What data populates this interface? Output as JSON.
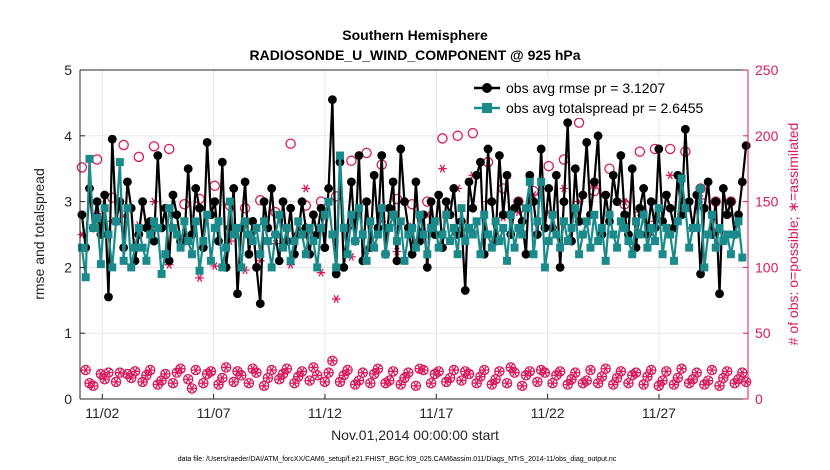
{
  "chart_data": {
    "type": "line",
    "title": "Southern Hemisphere",
    "subtitle": "RADIOSONDE_U_WIND_COMPONENT @ 925 hPa",
    "xlabel": "Nov.01,2014 00:00:00 start",
    "ylabel": "rmse and totalspread",
    "ylabel_right": "# of obs: o=possible; ∗=assimilated",
    "footnote": "data file: /Users/raeder/DAI/ATM_forcXX/CAM6_setup/f.e21.FHIST_BGC.f09_025.CAM6assim.011/Diags_NTrS_2014-11/obs_diag_output.nc",
    "legend_position": "top-right",
    "legend": [
      "obs avg rmse pr = 3.1207",
      "obs avg totalspread pr = 2.6455"
    ],
    "xlim": [
      0.5,
      30.5
    ],
    "ylim": [
      0,
      5
    ],
    "ylim_right": [
      0,
      250
    ],
    "x_ticks": [
      1.5,
      6.5,
      11.5,
      16.5,
      21.5,
      26.5
    ],
    "x_tick_labels": [
      "11/02",
      "11/07",
      "11/12",
      "11/17",
      "11/22",
      "11/27"
    ],
    "y_ticks": [
      0,
      1,
      2,
      3,
      4,
      5
    ],
    "y_tick_labels": [
      "0",
      "1",
      "2",
      "3",
      "4",
      "5"
    ],
    "y_ticks_right": [
      0,
      50,
      100,
      150,
      200,
      250
    ],
    "y_tick_labels_right": [
      "0",
      "50",
      "100",
      "150",
      "200",
      "250"
    ],
    "colors": {
      "rmse": "#000000",
      "spread": "#1a8a8a",
      "obs": "#d81b5e",
      "axis": "#262626",
      "grid": "#dcdcdc"
    },
    "series": [
      {
        "name": "obs avg rmse pr",
        "axis": "left",
        "values": [
          2.8,
          2.3,
          3.2,
          2.6,
          3.0,
          2.5,
          3.1,
          1.55,
          3.95,
          2.7,
          3.0,
          2.3,
          3.3,
          2.9,
          2.1,
          2.5,
          3.0,
          2.6,
          2.7,
          2.4,
          3.7,
          2.6,
          2.9,
          2.1,
          3.1,
          2.8,
          2.4,
          2.4,
          3.5,
          2.5,
          3.2,
          2.9,
          2.3,
          3.9,
          2.8,
          3.0,
          2.4,
          3.6,
          2.0,
          2.6,
          3.2,
          1.6,
          2.6,
          3.3,
          2.2,
          2.7,
          2.0,
          1.45,
          3.0,
          2.6,
          3.2,
          2.5,
          2.1,
          3.0,
          2.4,
          2.9,
          2.2,
          2.5,
          3.0,
          2.6,
          2.2,
          2.8,
          2.5,
          2.9,
          2.3,
          3.2,
          4.55,
          1.9,
          3.6,
          2.0,
          2.6,
          3.3,
          2.4,
          3.7,
          2.1,
          3.0,
          2.3,
          3.4,
          2.6,
          3.7,
          2.2,
          2.9,
          3.3,
          2.1,
          3.8,
          3.0,
          2.6,
          2.2,
          3.3,
          2.4,
          2.8,
          2.0,
          3.0,
          2.5,
          3.1,
          2.3,
          3.0,
          2.8,
          3.2,
          2.5,
          2.7,
          1.65,
          3.3,
          2.9,
          3.4,
          3.6,
          2.2,
          3.8,
          3.0,
          2.4,
          3.7,
          2.8,
          3.4,
          2.5,
          2.9,
          3.0,
          2.7,
          2.2,
          3.4,
          3.0,
          2.5,
          3.8,
          2.6,
          3.2,
          2.6,
          3.4,
          2.0,
          3.0,
          4.2,
          2.4,
          3.5,
          2.7,
          3.1,
          3.9,
          2.8,
          3.3,
          4.0,
          2.5,
          3.1,
          2.7,
          3.4,
          3.0,
          3.7,
          2.8,
          2.5,
          3.5,
          2.3,
          2.9,
          3.2,
          2.5,
          3.0,
          2.6,
          3.8,
          2.7,
          3.1,
          2.9,
          2.6,
          3.4,
          2.8,
          4.1,
          3.0,
          2.6,
          3.1,
          1.9,
          2.9,
          3.3,
          2.5,
          3.0,
          1.6,
          3.2,
          2.8,
          3.0,
          2.5,
          2.8,
          3.3,
          3.85
        ]
      },
      {
        "name": "obs avg totalspread pr",
        "axis": "left",
        "values": [
          2.3,
          1.85,
          3.65,
          2.6,
          2.75,
          2.05,
          2.9,
          2.5,
          2.0,
          2.7,
          3.6,
          2.1,
          2.9,
          2.0,
          2.3,
          2.6,
          2.3,
          2.1,
          2.5,
          2.7,
          2.6,
          1.9,
          2.2,
          2.9,
          2.6,
          2.5,
          2.3,
          2.7,
          2.4,
          2.2,
          2.7,
          1.95,
          2.4,
          2.8,
          2.1,
          2.6,
          2.7,
          2.0,
          2.3,
          3.0,
          2.5,
          2.6,
          2.0,
          2.7,
          2.5,
          2.4,
          2.6,
          2.2,
          2.7,
          2.4,
          2.0,
          2.5,
          2.8,
          2.3,
          2.6,
          2.1,
          2.4,
          2.7,
          2.5,
          2.2,
          2.6,
          2.4,
          2.0,
          2.6,
          2.8,
          3.0,
          2.5,
          2.0,
          3.7,
          2.6,
          2.2,
          2.8,
          2.4,
          2.9,
          2.5,
          2.1,
          2.7,
          2.3,
          2.5,
          2.9,
          2.2,
          2.6,
          2.8,
          2.4,
          2.7,
          2.1,
          2.5,
          2.6,
          2.3,
          2.8,
          2.5,
          2.2,
          2.6,
          2.7,
          2.3,
          2.5,
          2.8,
          2.4,
          2.6,
          2.2,
          2.9,
          2.4,
          2.6,
          2.5,
          2.7,
          2.2,
          2.8,
          2.5,
          2.3,
          2.7,
          2.4,
          2.6,
          2.1,
          2.8,
          2.3,
          2.6,
          2.5,
          2.9,
          3.3,
          2.2,
          2.7,
          3.3,
          2.0,
          2.4,
          2.8,
          2.5,
          2.3,
          2.7,
          2.4,
          2.6,
          2.9,
          2.2,
          2.5,
          2.7,
          2.3,
          2.8,
          2.4,
          2.6,
          2.1,
          2.8,
          2.5,
          2.3,
          2.7,
          2.6,
          2.4,
          2.2,
          2.7,
          2.5,
          2.8,
          2.3,
          2.6,
          2.4,
          2.9,
          2.2,
          2.6,
          2.5,
          2.1,
          2.7,
          3.35,
          2.9,
          2.3,
          2.6,
          2.6,
          3.2,
          2.0,
          2.5,
          2.8,
          2.3,
          2.6,
          2.4,
          2.5,
          2.2,
          2.5,
          2.7,
          2.15
        ]
      },
      {
        "name": "obs possible (o)",
        "axis": "right",
        "values": [
          176,
          22,
          12,
          10,
          182,
          19,
          15,
          20,
          153,
          13,
          20,
          193,
          19,
          16,
          21,
          184,
          13,
          18,
          22,
          192,
          11,
          14,
          19,
          190,
          12,
          20,
          23,
          148,
          15,
          8,
          22,
          152,
          12,
          19,
          21,
          162,
          11,
          16,
          24,
          147,
          13,
          21,
          18,
          145,
          12,
          23,
          20,
          151,
          10,
          16,
          22,
          142,
          15,
          19,
          23,
          194,
          12,
          17,
          21,
          147,
          14,
          24,
          18,
          150,
          13,
          20,
          29,
          154,
          13,
          18,
          22,
          181,
          11,
          14,
          20,
          187,
          12,
          19,
          23,
          178,
          12,
          14,
          21,
          152,
          11,
          16,
          20,
          148,
          10,
          23,
          22,
          150,
          12,
          19,
          21,
          198,
          13,
          16,
          22,
          200,
          14,
          21,
          19,
          202,
          12,
          17,
          22,
          180,
          11,
          15,
          21,
          160,
          12,
          24,
          20,
          150,
          10,
          18,
          21,
          158,
          13,
          22,
          20,
          177,
          12,
          18,
          21,
          182,
          11,
          15,
          20,
          210,
          12,
          14,
          22,
          158,
          12,
          17,
          23,
          175,
          11,
          16,
          21,
          148,
          12,
          18,
          20,
          188,
          11,
          17,
          22,
          190,
          10,
          14,
          21,
          190,
          11,
          16,
          23,
          188,
          12,
          15,
          20,
          160,
          11,
          14,
          22,
          150,
          10,
          16,
          21,
          150,
          12,
          15,
          20,
          13
        ]
      },
      {
        "name": "obs assimilated (∗)",
        "axis": "right",
        "values": [
          125,
          22,
          12,
          10,
          141,
          19,
          15,
          20,
          135,
          13,
          20,
          139,
          19,
          16,
          21,
          132,
          13,
          18,
          22,
          150,
          11,
          14,
          19,
          102,
          12,
          20,
          23,
          124,
          15,
          8,
          22,
          92,
          12,
          19,
          21,
          101,
          11,
          16,
          24,
          120,
          13,
          21,
          18,
          98,
          12,
          23,
          20,
          105,
          10,
          16,
          22,
          118,
          15,
          19,
          23,
          102,
          12,
          17,
          21,
          160,
          14,
          24,
          18,
          96,
          13,
          20,
          29,
          76,
          13,
          18,
          22,
          108,
          11,
          14,
          20,
          113,
          12,
          19,
          23,
          135,
          12,
          14,
          21,
          112,
          11,
          16,
          20,
          131,
          10,
          23,
          22,
          140,
          12,
          19,
          21,
          175,
          13,
          16,
          22,
          160,
          14,
          21,
          19,
          170,
          12,
          17,
          22,
          150,
          11,
          15,
          21,
          138,
          12,
          24,
          20,
          142,
          10,
          18,
          21,
          155,
          13,
          22,
          20,
          142,
          12,
          18,
          21,
          160,
          11,
          15,
          20,
          150,
          12,
          14,
          22,
          162,
          12,
          17,
          23,
          140,
          11,
          16,
          21,
          150,
          12,
          18,
          20,
          142,
          11,
          17,
          22,
          135,
          10,
          14,
          21,
          170,
          11,
          16,
          23,
          145,
          12,
          15,
          20,
          152,
          11,
          14,
          22,
          128,
          10,
          16,
          21,
          150,
          12,
          15,
          20,
          13
        ]
      }
    ]
  }
}
